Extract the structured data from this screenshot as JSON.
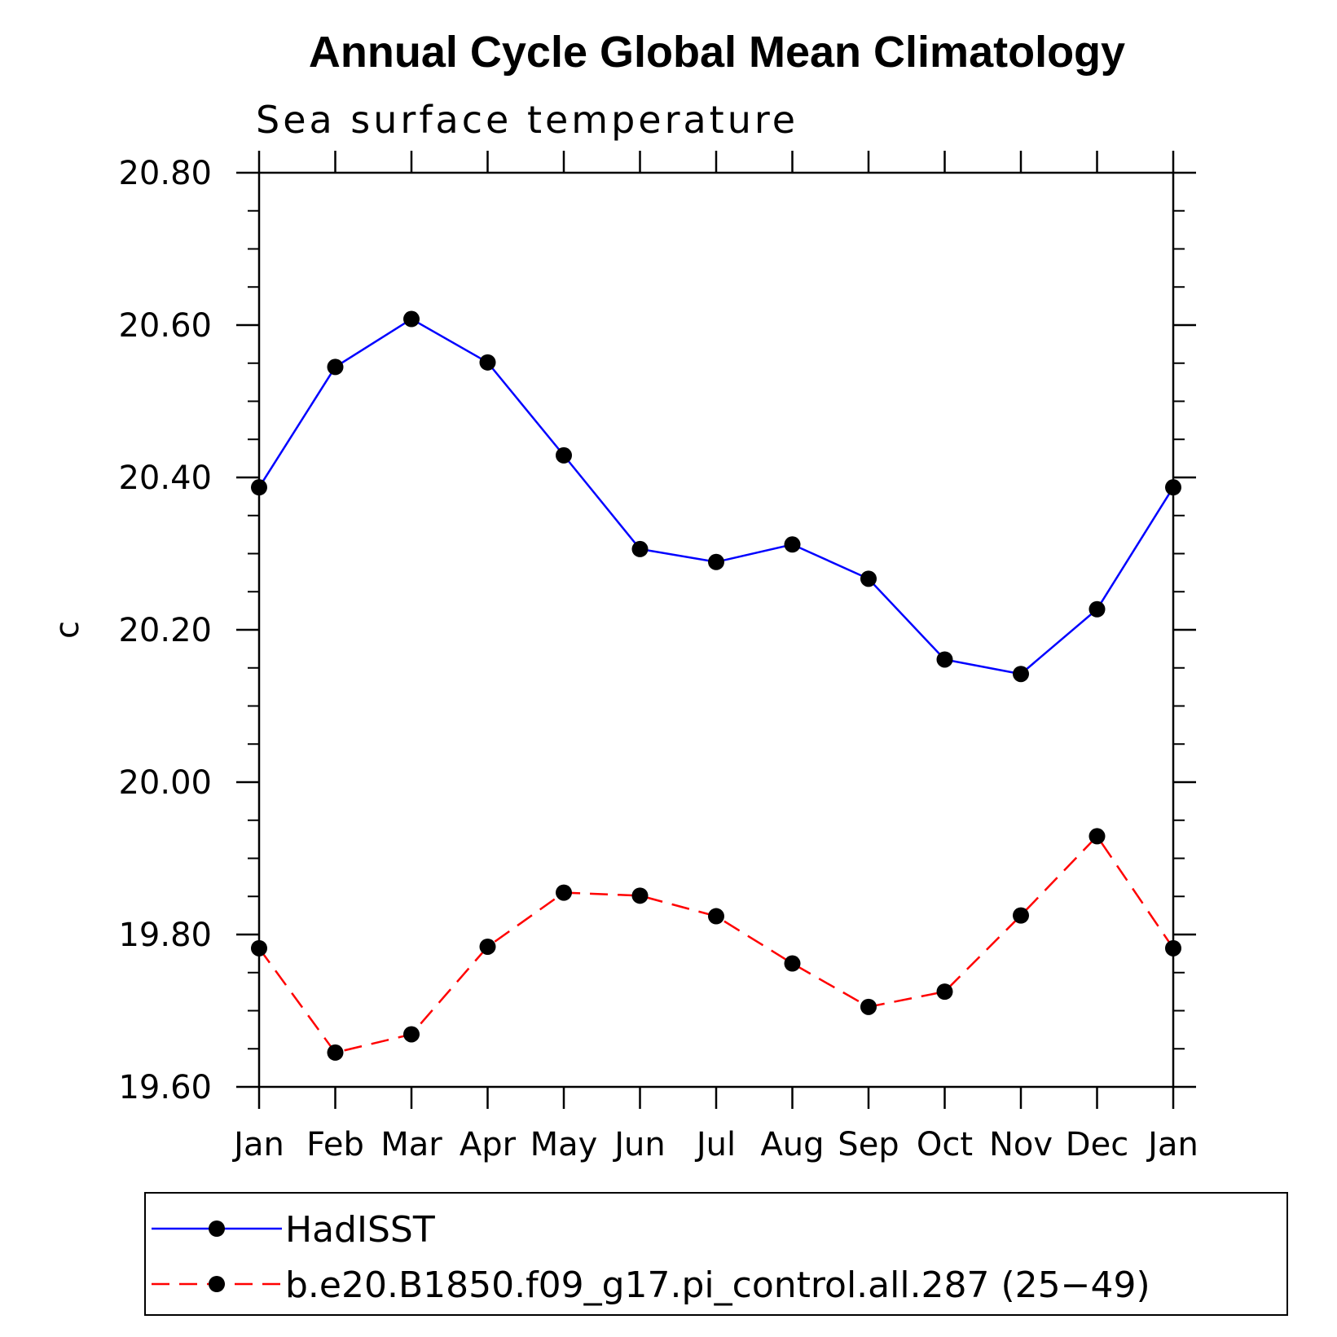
{
  "chart_data": {
    "type": "line",
    "title": "Annual Cycle Global Mean Climatology",
    "subtitle": "Sea surface temperature",
    "xlabel": "",
    "ylabel": "c",
    "categories": [
      "Jan",
      "Feb",
      "Mar",
      "Apr",
      "May",
      "Jun",
      "Jul",
      "Aug",
      "Sep",
      "Oct",
      "Nov",
      "Dec",
      "Jan"
    ],
    "ylim": [
      19.6,
      20.8
    ],
    "yticks": [
      "19.60",
      "19.80",
      "20.00",
      "20.20",
      "20.40",
      "20.60",
      "20.80"
    ],
    "y_minor_step": 0.05,
    "grid": false,
    "legend_position": "bottom",
    "series": [
      {
        "name": "HadISST",
        "color": "#0000ff",
        "dash": "solid",
        "marker": "filled-circle",
        "values": [
          20.387,
          20.545,
          20.608,
          20.551,
          20.429,
          20.306,
          20.289,
          20.312,
          20.267,
          20.161,
          20.142,
          20.227,
          20.387
        ]
      },
      {
        "name": "b.e20.B1850.f09_g17.pi_control.all.287 (25−49)",
        "color": "#ff0000",
        "dash": "dashed",
        "marker": "filled-circle",
        "values": [
          19.782,
          19.645,
          19.669,
          19.784,
          19.855,
          19.851,
          19.824,
          19.762,
          19.705,
          19.725,
          19.825,
          19.929,
          19.782
        ]
      }
    ]
  }
}
